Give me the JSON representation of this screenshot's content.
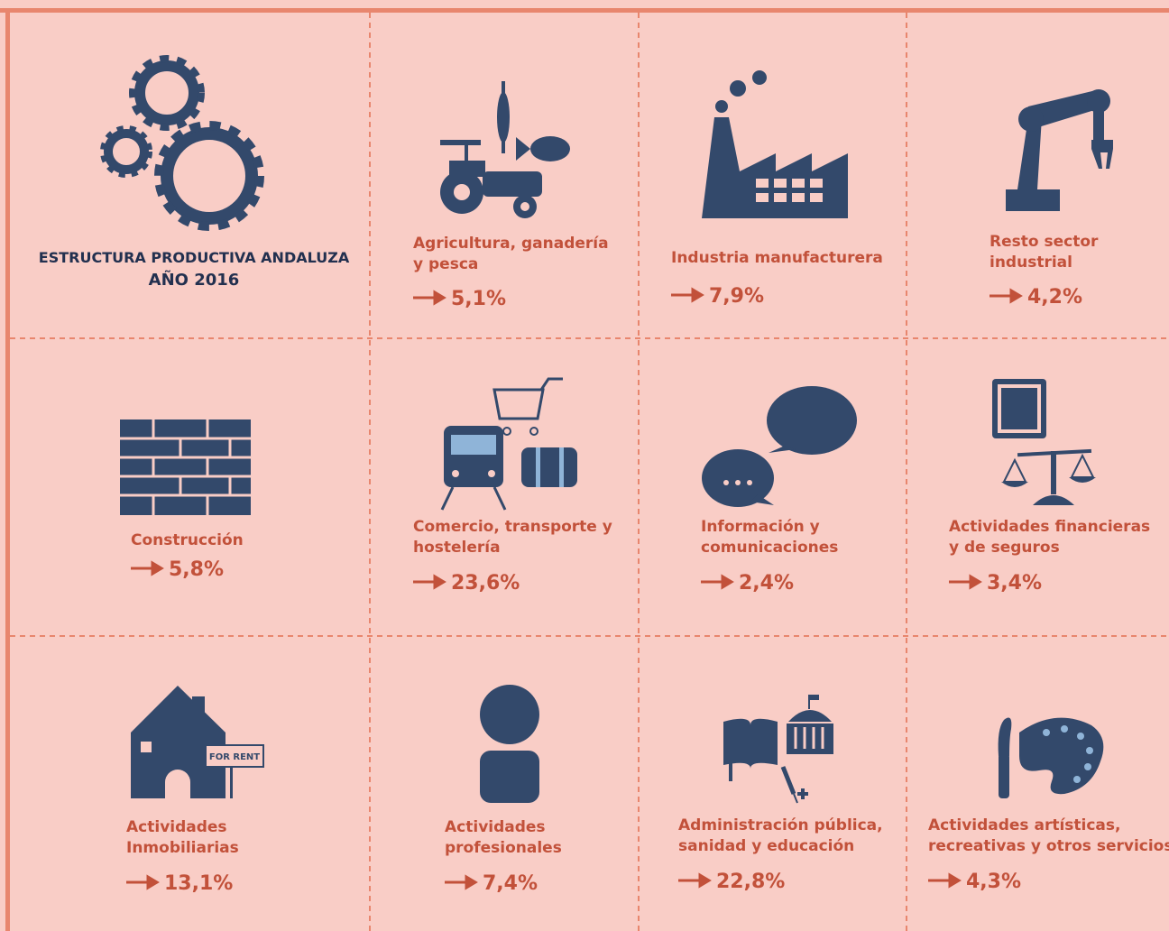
{
  "header": {
    "title": "ESTRUCTURA PRODUCTIVA ANDALUZA",
    "year": "AÑO 2016"
  },
  "sectors": [
    {
      "label": [
        "Agricultura, ganadería",
        "y pesca"
      ],
      "value": "5,1%"
    },
    {
      "label": [
        "Industria manufacturera"
      ],
      "value": "7,9%"
    },
    {
      "label": [
        "Resto sector",
        "industrial"
      ],
      "value": "4,2%"
    },
    {
      "label": [
        "Construcción"
      ],
      "value": "5,8%"
    },
    {
      "label": [
        "Comercio, transporte y",
        "hostelería"
      ],
      "value": "23,6%"
    },
    {
      "label": [
        "Información y",
        "comunicaciones"
      ],
      "value": "2,4%"
    },
    {
      "label": [
        "Actividades financieras",
        "y de seguros"
      ],
      "value": "3,4%"
    },
    {
      "label": [
        "Actividades",
        "Inmobiliarias"
      ],
      "value": "13,1%"
    },
    {
      "label": [
        "Actividades",
        "profesionales"
      ],
      "value": "7,4%"
    },
    {
      "label": [
        "Administración pública,",
        "sanidad y educación"
      ],
      "value": "22,8%"
    },
    {
      "label": [
        "Actividades artísticas,",
        "recreativas y otros servicios"
      ],
      "value": "4,3%"
    }
  ],
  "icon_text": {
    "for_rent": "FOR RENT"
  }
}
